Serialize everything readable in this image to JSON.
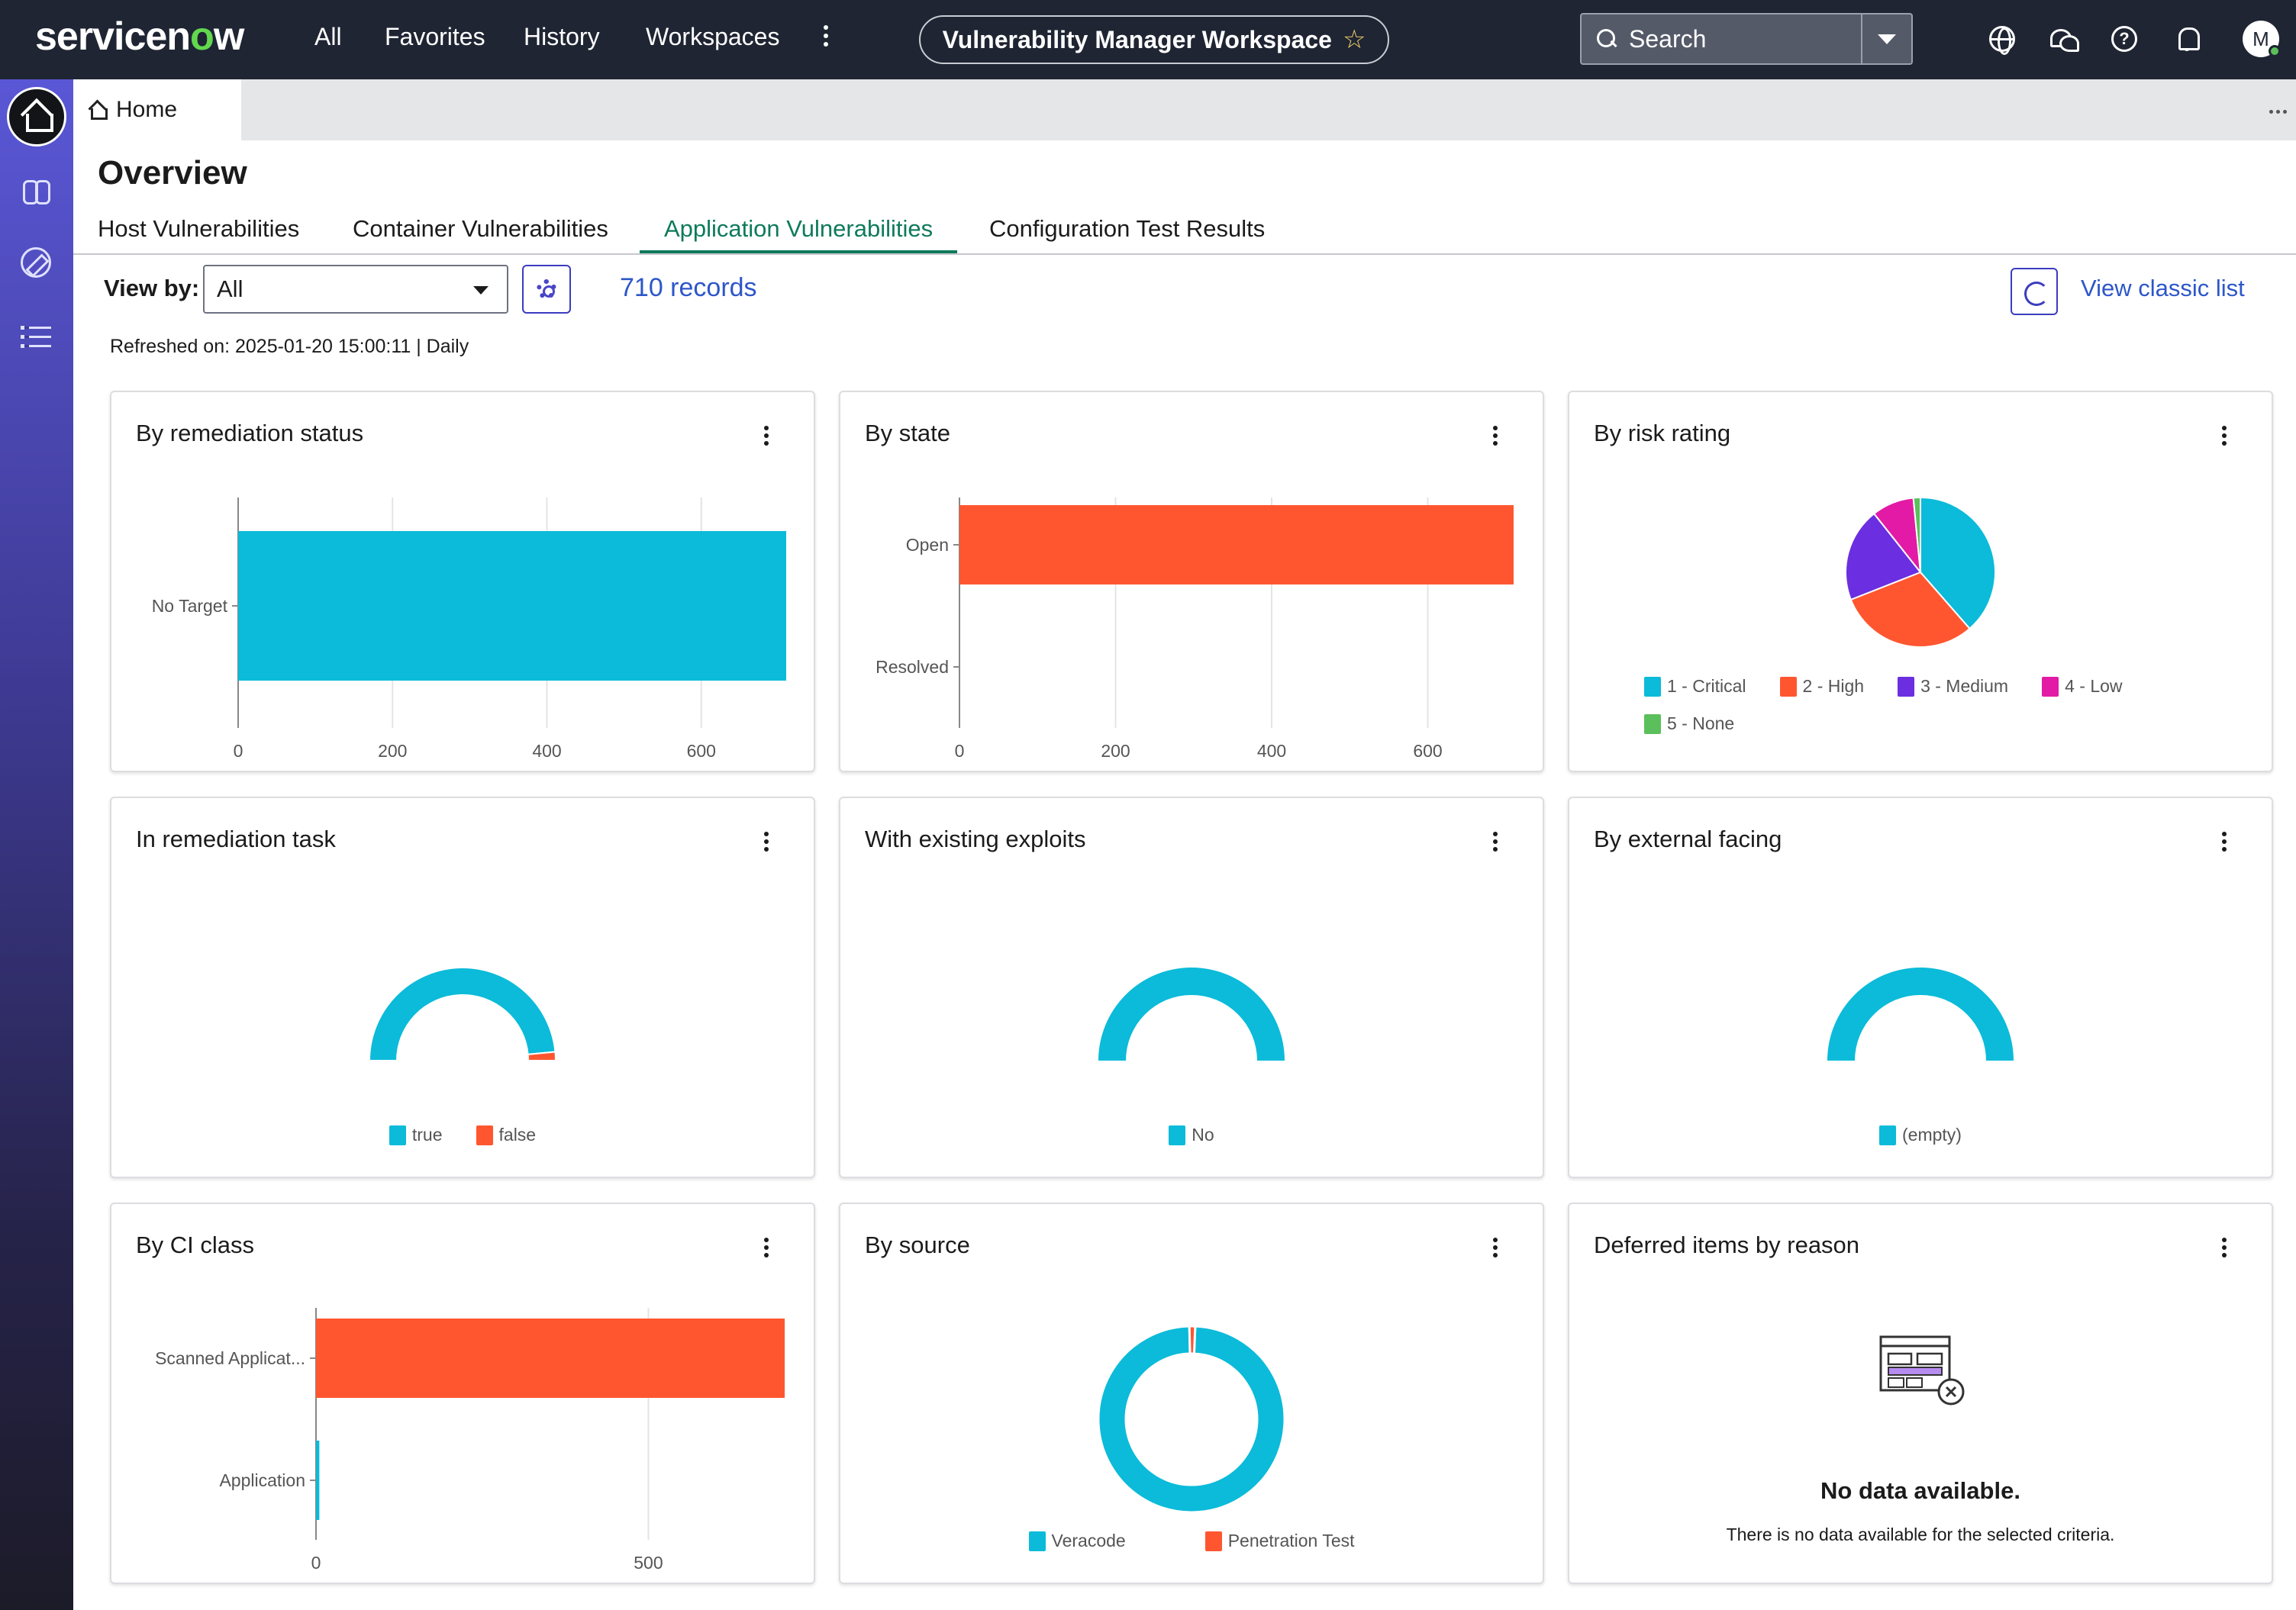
{
  "header": {
    "logo_pre": "servicen",
    "logo_o": "o",
    "logo_post": "w",
    "nav": [
      "All",
      "Favorites",
      "History",
      "Workspaces"
    ],
    "workspace": "Vulnerability Manager Workspace",
    "search_placeholder": "Search",
    "avatar_initial": "M"
  },
  "tabstrip": {
    "home": "Home"
  },
  "page": {
    "title": "Overview",
    "subtabs": [
      "Host Vulnerabilities",
      "Container Vulnerabilities",
      "Application Vulnerabilities",
      "Configuration Test Results"
    ],
    "active_subtab": 2,
    "view_by_label": "View by:",
    "view_by_value": "All",
    "records": "710 records",
    "view_classic": "View classic list",
    "refreshed": "Refreshed on: 2025-01-20 15:00:11 | Daily"
  },
  "colors": {
    "cyan": "#0bbbd9",
    "orange": "#ff5630",
    "purple": "#6b2ee0",
    "pink": "#e21aa6",
    "green": "#5bbf5b",
    "link": "#2d56c9",
    "active_tab": "#0e7a5c"
  },
  "cards": [
    {
      "title": "By remediation status"
    },
    {
      "title": "By state"
    },
    {
      "title": "By risk rating"
    },
    {
      "title": "In remediation task"
    },
    {
      "title": "With existing exploits"
    },
    {
      "title": "By external facing"
    },
    {
      "title": "By CI class"
    },
    {
      "title": "By source"
    },
    {
      "title": "Deferred items by reason"
    }
  ],
  "nodata": {
    "title": "No data available.",
    "description": "There is no data available for the selected criteria."
  },
  "chart_data": [
    {
      "type": "bar",
      "orientation": "horizontal",
      "title": "By remediation status",
      "categories": [
        "No Target"
      ],
      "values": [
        710
      ],
      "xlim": [
        0,
        710
      ],
      "xticks": [
        0,
        200,
        400,
        600
      ],
      "grid": true
    },
    {
      "type": "bar",
      "orientation": "horizontal",
      "title": "By state",
      "categories": [
        "Open",
        "Resolved"
      ],
      "values": [
        710,
        0
      ],
      "xlim": [
        0,
        710
      ],
      "xticks": [
        0,
        200,
        400,
        600
      ],
      "grid": true
    },
    {
      "type": "pie",
      "title": "By risk rating",
      "categories": [
        "1 - Critical",
        "2 - High",
        "3 - Medium",
        "4 - Low",
        "5 - None"
      ],
      "values": [
        38,
        30,
        20,
        9,
        1.5
      ],
      "legend": "bottom"
    },
    {
      "type": "donut-gauge",
      "title": "In remediation task",
      "categories": [
        "true",
        "false"
      ],
      "values": [
        97,
        3
      ],
      "legend": "bottom"
    },
    {
      "type": "donut-gauge",
      "title": "With existing exploits",
      "categories": [
        "No"
      ],
      "values": [
        100
      ],
      "legend": "bottom"
    },
    {
      "type": "donut-gauge",
      "title": "By external facing",
      "categories": [
        "(empty)"
      ],
      "values": [
        100
      ],
      "legend": "bottom"
    },
    {
      "type": "bar",
      "orientation": "horizontal",
      "title": "By CI class",
      "categories": [
        "Scanned Applicat...",
        "Application"
      ],
      "values": [
        705,
        5
      ],
      "xlim": [
        0,
        705
      ],
      "xticks": [
        0,
        500
      ],
      "grid": true
    },
    {
      "type": "donut",
      "title": "By source",
      "categories": [
        "Veracode",
        "Penetration Test"
      ],
      "values": [
        99,
        1
      ],
      "legend": "bottom"
    }
  ]
}
